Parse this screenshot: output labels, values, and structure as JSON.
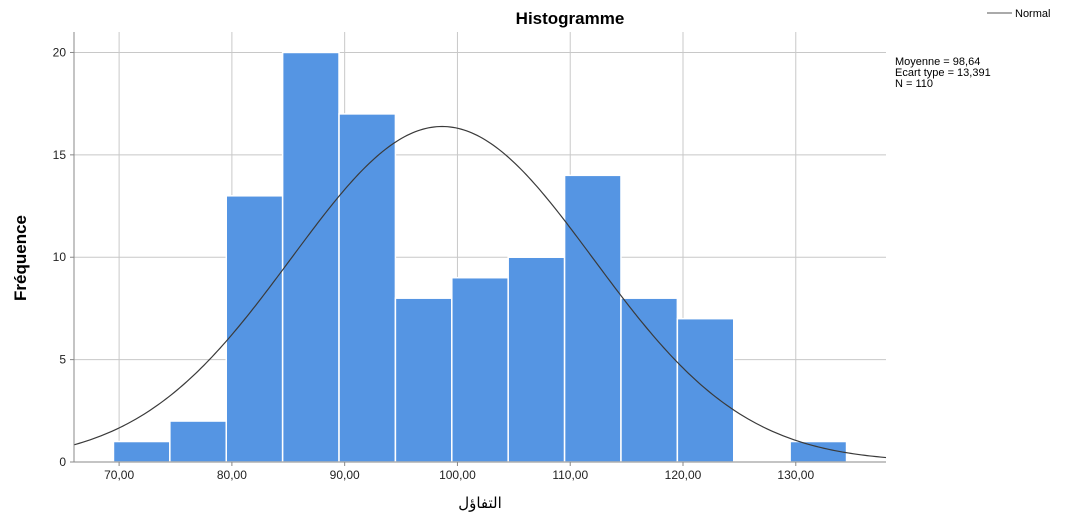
{
  "chart_data": {
    "type": "bar",
    "title": "Histogramme",
    "xlabel": "التفاؤل",
    "ylabel": "Fréquence",
    "xlim": [
      66,
      138
    ],
    "ylim": [
      0,
      21
    ],
    "bin_width": 5,
    "bins": [
      {
        "start": 69.5,
        "end": 74.5,
        "value": 1
      },
      {
        "start": 74.5,
        "end": 79.5,
        "value": 2
      },
      {
        "start": 79.5,
        "end": 84.5,
        "value": 13
      },
      {
        "start": 84.5,
        "end": 89.5,
        "value": 20
      },
      {
        "start": 89.5,
        "end": 94.5,
        "value": 17
      },
      {
        "start": 94.5,
        "end": 99.5,
        "value": 8
      },
      {
        "start": 99.5,
        "end": 104.5,
        "value": 9
      },
      {
        "start": 104.5,
        "end": 109.5,
        "value": 10
      },
      {
        "start": 109.5,
        "end": 114.5,
        "value": 14
      },
      {
        "start": 114.5,
        "end": 119.5,
        "value": 8
      },
      {
        "start": 119.5,
        "end": 124.5,
        "value": 7
      },
      {
        "start": 124.5,
        "end": 129.5,
        "value": 0
      },
      {
        "start": 129.5,
        "end": 134.5,
        "value": 1
      }
    ],
    "x_ticks": [
      {
        "value": 70,
        "label": "70,00"
      },
      {
        "value": 80,
        "label": "80,00"
      },
      {
        "value": 90,
        "label": "90,00"
      },
      {
        "value": 100,
        "label": "100,00"
      },
      {
        "value": 110,
        "label": "110,00"
      },
      {
        "value": 120,
        "label": "120,00"
      },
      {
        "value": 130,
        "label": "130,00"
      }
    ],
    "y_ticks": [
      {
        "value": 0,
        "label": "0"
      },
      {
        "value": 5,
        "label": "5"
      },
      {
        "value": 10,
        "label": "10"
      },
      {
        "value": 15,
        "label": "15"
      },
      {
        "value": 20,
        "label": "20"
      }
    ],
    "normal_curve": {
      "name": "Normal",
      "mean": 98.64,
      "sd": 13.391,
      "n": 110
    },
    "stats": {
      "mean_label": "Moyenne = 98,64",
      "sd_label": "Ecart type = 13,391",
      "n_label": "N = 110"
    },
    "legend": {
      "position": "top-right",
      "entries": [
        "Normal"
      ]
    },
    "grid": true,
    "colors": {
      "bar": "#5595e3",
      "bar_edge": "#ffffff",
      "curve": "#3a3a3a",
      "grid": "#c8c8c8",
      "axis": "#888888"
    }
  }
}
